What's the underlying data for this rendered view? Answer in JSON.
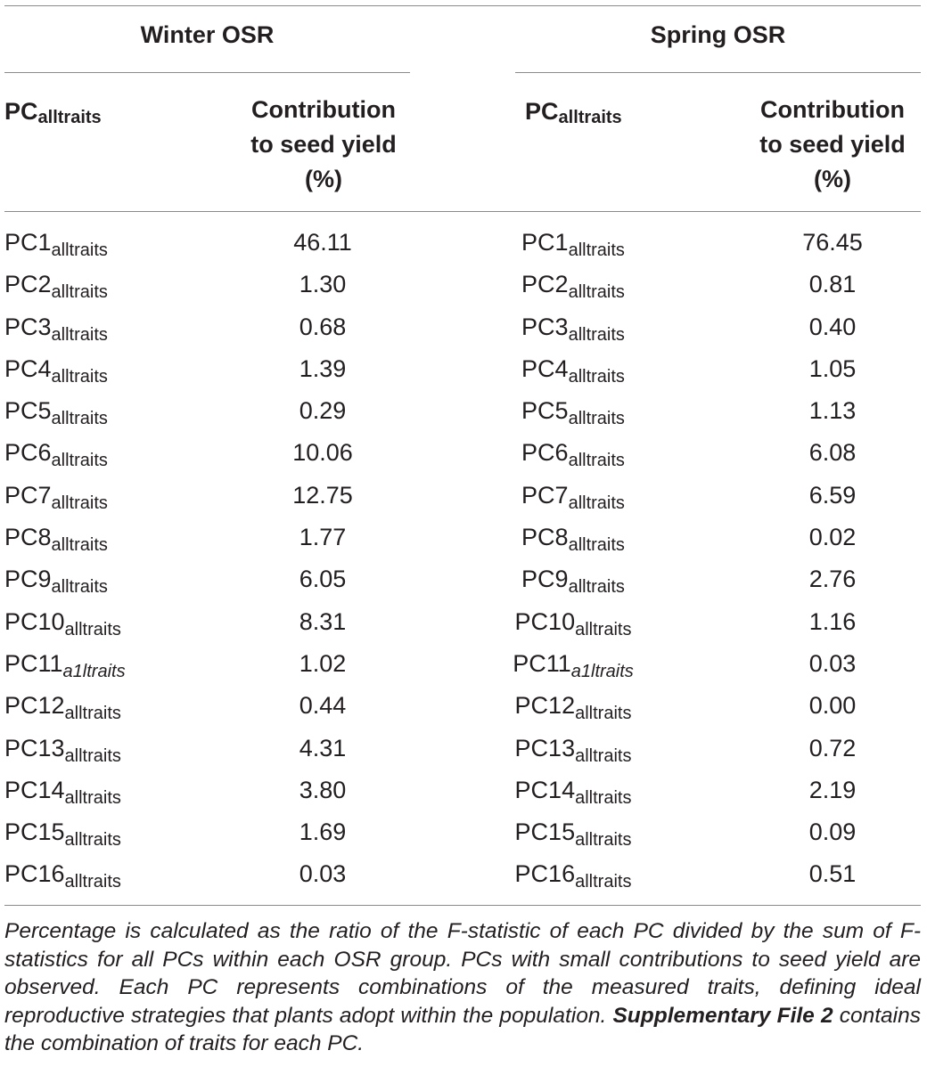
{
  "groups": {
    "winter": {
      "title": "Winter OSR"
    },
    "spring": {
      "title": "Spring OSR"
    }
  },
  "headers": {
    "pc_main": "PC",
    "pc_sub": "alltraits",
    "contribution": [
      "Contribution",
      "to seed yield",
      "(%)"
    ]
  },
  "rows": [
    {
      "pc": "PC1",
      "sub": "alltraits",
      "winter": "46.11",
      "spring": "76.45"
    },
    {
      "pc": "PC2",
      "sub": "alltraits",
      "winter": "1.30",
      "spring": "0.81"
    },
    {
      "pc": "PC3",
      "sub": "alltraits",
      "winter": "0.68",
      "spring": "0.40"
    },
    {
      "pc": "PC4",
      "sub": "alltraits",
      "winter": "1.39",
      "spring": "1.05"
    },
    {
      "pc": "PC5",
      "sub": "alltraits",
      "winter": "0.29",
      "spring": "1.13"
    },
    {
      "pc": "PC6",
      "sub": "alltraits",
      "winter": "10.06",
      "spring": "6.08"
    },
    {
      "pc": "PC7",
      "sub": "alltraits",
      "winter": "12.75",
      "spring": "6.59"
    },
    {
      "pc": "PC8",
      "sub": "alltraits",
      "winter": "1.77",
      "spring": "0.02"
    },
    {
      "pc": "PC9",
      "sub": "alltraits",
      "winter": "6.05",
      "spring": "2.76"
    },
    {
      "pc": "PC10",
      "sub": "alltraits",
      "winter": "8.31",
      "spring": "1.16"
    },
    {
      "pc": "PC11",
      "sub": "a1ltraits",
      "italic": true,
      "winter": "1.02",
      "spring": "0.03"
    },
    {
      "pc": "PC12",
      "sub": "alltraits",
      "winter": "0.44",
      "spring": "0.00"
    },
    {
      "pc": "PC13",
      "sub": "alltraits",
      "winter": "4.31",
      "spring": "0.72"
    },
    {
      "pc": "PC14",
      "sub": "alltraits",
      "winter": "3.80",
      "spring": "2.19"
    },
    {
      "pc": "PC15",
      "sub": "alltraits",
      "winter": "1.69",
      "spring": "0.09"
    },
    {
      "pc": "PC16",
      "sub": "alltraits",
      "winter": "0.03",
      "spring": "0.51"
    }
  ],
  "footnote": {
    "text": "Percentage is calculated as the ratio of the F-statistic of each PC divided by the sum of F-statistics for all PCs within each OSR group. PCs with small contributions to seed yield are observed. Each PC represents combinations of the measured traits, defining ideal reproductive strategies that plants adopt within the population. ",
    "bold": "Supplementary File 2",
    "tail": " contains the combination of traits for each PC."
  }
}
